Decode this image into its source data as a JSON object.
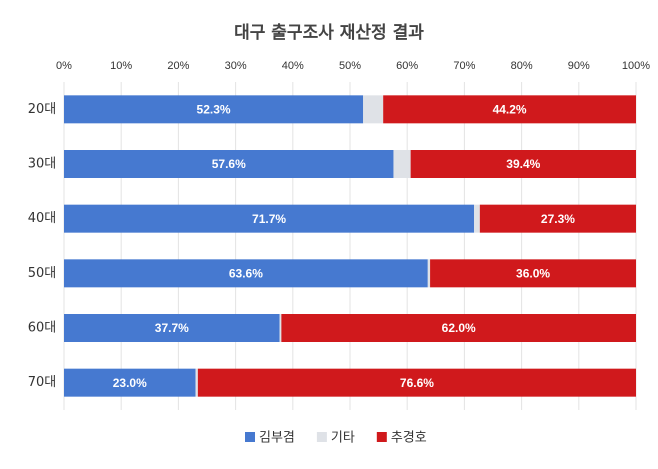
{
  "chart_data": {
    "type": "stacked-bar-horizontal",
    "title": "대구 출구조사 재산정 결과",
    "categories": [
      "20대",
      "30대",
      "40대",
      "50대",
      "60대",
      "70대"
    ],
    "series": [
      {
        "name": "김부겸",
        "color": "#4679d0",
        "values": [
          52.3,
          57.6,
          71.7,
          63.6,
          37.7,
          23.0
        ],
        "value_labels": [
          "52.3%",
          "57.6%",
          "71.7%",
          "63.6%",
          "37.7%",
          "23.0%"
        ]
      },
      {
        "name": "기타",
        "color": "#dfe2e7",
        "values": [
          3.5,
          3.0,
          1.0,
          0.4,
          0.3,
          0.4
        ]
      },
      {
        "name": "추경호",
        "color": "#d0191c",
        "values": [
          44.2,
          39.4,
          27.3,
          36.0,
          62.0,
          76.6
        ],
        "value_labels": [
          "44.2%",
          "39.4%",
          "27.3%",
          "36.0%",
          "62.0%",
          "76.6%"
        ]
      }
    ],
    "xlim": [
      0,
      100
    ],
    "xticks": [
      {
        "value": 0,
        "label": "0%"
      },
      {
        "value": 10,
        "label": "10%"
      },
      {
        "value": 20,
        "label": "20%"
      },
      {
        "value": 30,
        "label": "30%"
      },
      {
        "value": 40,
        "label": "40%"
      },
      {
        "value": 50,
        "label": "50%"
      },
      {
        "value": 60,
        "label": "60%"
      },
      {
        "value": 70,
        "label": "70%"
      },
      {
        "value": 80,
        "label": "80%"
      },
      {
        "value": 90,
        "label": "90%"
      },
      {
        "value": 100,
        "label": "100%"
      }
    ],
    "grid": true,
    "legend": "bottom"
  }
}
